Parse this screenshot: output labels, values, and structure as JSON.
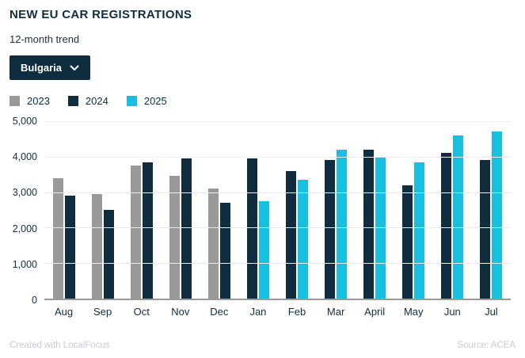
{
  "header": {
    "title": "NEW EU CAR REGISTRATIONS",
    "subtitle": "12-month trend"
  },
  "dropdown": {
    "selected": "Bulgaria",
    "icon": "chevron-down-icon"
  },
  "legend": [
    {
      "label": "2023",
      "color": "#999999"
    },
    {
      "label": "2024",
      "color": "#0f2d3f"
    },
    {
      "label": "2025",
      "color": "#16c0de"
    }
  ],
  "colors": {
    "navy": "#0f2d3f",
    "gray": "#999999",
    "cyan": "#16c0de",
    "gridline": "#eaeaea",
    "axis_line": "#9a9a9a",
    "footer_text": "#c7ccd1"
  },
  "chart_data": {
    "type": "bar",
    "title": "NEW EU CAR REGISTRATIONS",
    "subtitle": "12-month trend",
    "categories": [
      "Aug",
      "Sep",
      "Oct",
      "Nov",
      "Dec",
      "Jan",
      "Feb",
      "Mar",
      "April",
      "May",
      "Jun",
      "Jul"
    ],
    "series": [
      {
        "name": "2023",
        "color": "#999999",
        "values": [
          3400,
          2950,
          3750,
          3450,
          3100,
          null,
          null,
          null,
          null,
          null,
          null,
          null
        ]
      },
      {
        "name": "2024",
        "color": "#0f2d3f",
        "values": [
          2900,
          2500,
          3850,
          3950,
          2700,
          3950,
          3600,
          3900,
          4200,
          3200,
          4100,
          3900
        ]
      },
      {
        "name": "2025",
        "color": "#16c0de",
        "values": [
          null,
          null,
          null,
          null,
          null,
          2750,
          3350,
          4200,
          4000,
          3850,
          4600,
          4700
        ]
      }
    ],
    "xlabel": "",
    "ylabel": "",
    "ylim": [
      0,
      5000
    ],
    "ytick_values": [
      0,
      1000,
      2000,
      3000,
      4000,
      5000
    ],
    "ytick_labels": [
      "0",
      "1,000",
      "2,000",
      "3,000",
      "4,000",
      "5,000"
    ],
    "grid": true,
    "legend_position": "top"
  },
  "footer": {
    "left": "Created with LocalFocus",
    "right": "Source:  ACEA"
  }
}
